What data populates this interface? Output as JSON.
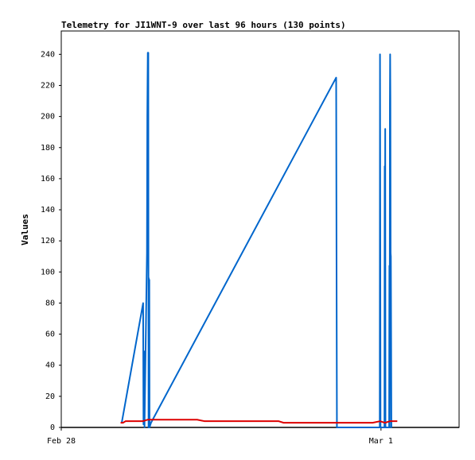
{
  "chart_data": {
    "type": "line",
    "title": "Telemetry for JI1WNT-9 over last 96 hours (130 points)",
    "xlabel": "",
    "ylabel": "Values",
    "x_tick_labels": [
      "Feb 28",
      "Mar 1"
    ],
    "y_ticks": [
      0,
      20,
      40,
      60,
      80,
      100,
      120,
      140,
      160,
      180,
      200,
      220,
      240
    ],
    "ylim": [
      0,
      255
    ],
    "grid": false,
    "legend": "none",
    "series": [
      {
        "color": "#0066cc",
        "points": [
          [
            0.152,
            3
          ],
          [
            0.2058,
            80
          ],
          [
            0.2067,
            2
          ],
          [
            0.208,
            49
          ],
          [
            0.2092,
            0
          ],
          [
            0.2154,
            112
          ],
          [
            0.2163,
            200
          ],
          [
            0.2169,
            222
          ],
          [
            0.2175,
            241
          ],
          [
            0.2182,
            160
          ],
          [
            0.2188,
            241
          ],
          [
            0.2194,
            0
          ],
          [
            0.22,
            96
          ],
          [
            0.2206,
            0
          ],
          [
            0.2213,
            95
          ],
          [
            0.2219,
            0
          ],
          [
            0.2256,
            3
          ],
          [
            0.691,
            225
          ],
          [
            0.6919,
            113
          ],
          [
            0.6929,
            0
          ],
          [
            0.8006,
            0
          ],
          [
            0.8012,
            240
          ],
          [
            0.8019,
            119
          ],
          [
            0.8025,
            0
          ],
          [
            0.8124,
            0
          ],
          [
            0.813,
            168
          ],
          [
            0.8137,
            80
          ],
          [
            0.8143,
            192
          ],
          [
            0.8149,
            0
          ],
          [
            0.8242,
            0
          ],
          [
            0.8248,
            104
          ],
          [
            0.8254,
            0
          ],
          [
            0.8261,
            208
          ],
          [
            0.8267,
            240
          ],
          [
            0.8273,
            212
          ],
          [
            0.8279,
            112
          ],
          [
            0.8285,
            110
          ],
          [
            0.8292,
            56
          ],
          [
            0.8298,
            0
          ],
          [
            0.8304,
            0
          ]
        ]
      },
      {
        "color": "#dd0000",
        "points": [
          [
            0.1491,
            3
          ],
          [
            0.1553,
            3
          ],
          [
            0.1615,
            4
          ],
          [
            0.1739,
            4
          ],
          [
            0.1863,
            4
          ],
          [
            0.205,
            4
          ],
          [
            0.2174,
            5
          ],
          [
            0.2298,
            5
          ],
          [
            0.2484,
            5
          ],
          [
            0.2671,
            5
          ],
          [
            0.2857,
            5
          ],
          [
            0.3043,
            5
          ],
          [
            0.323,
            5
          ],
          [
            0.3416,
            5
          ],
          [
            0.3602,
            4
          ],
          [
            0.3851,
            4
          ],
          [
            0.4099,
            4
          ],
          [
            0.4348,
            4
          ],
          [
            0.4596,
            4
          ],
          [
            0.4845,
            4
          ],
          [
            0.5093,
            4
          ],
          [
            0.5342,
            4
          ],
          [
            0.5466,
            4
          ],
          [
            0.559,
            3
          ],
          [
            0.5839,
            3
          ],
          [
            0.6087,
            3
          ],
          [
            0.6335,
            3
          ],
          [
            0.6584,
            3
          ],
          [
            0.6832,
            3
          ],
          [
            0.7081,
            3
          ],
          [
            0.7329,
            3
          ],
          [
            0.7578,
            3
          ],
          [
            0.7826,
            3
          ],
          [
            0.8012,
            4
          ],
          [
            0.8137,
            3
          ],
          [
            0.8261,
            4
          ],
          [
            0.8385,
            4
          ],
          [
            0.8447,
            4
          ]
        ]
      }
    ]
  }
}
